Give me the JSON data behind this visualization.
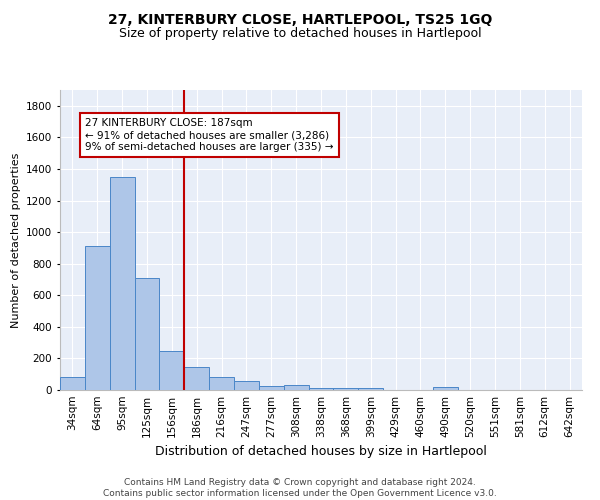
{
  "title": "27, KINTERBURY CLOSE, HARTLEPOOL, TS25 1GQ",
  "subtitle": "Size of property relative to detached houses in Hartlepool",
  "xlabel": "Distribution of detached houses by size in Hartlepool",
  "ylabel": "Number of detached properties",
  "footer_line1": "Contains HM Land Registry data © Crown copyright and database right 2024.",
  "footer_line2": "Contains public sector information licensed under the Open Government Licence v3.0.",
  "categories": [
    "34sqm",
    "64sqm",
    "95sqm",
    "125sqm",
    "156sqm",
    "186sqm",
    "216sqm",
    "247sqm",
    "277sqm",
    "308sqm",
    "338sqm",
    "368sqm",
    "399sqm",
    "429sqm",
    "460sqm",
    "490sqm",
    "520sqm",
    "551sqm",
    "581sqm",
    "612sqm",
    "642sqm"
  ],
  "values": [
    80,
    910,
    1350,
    710,
    250,
    145,
    85,
    55,
    25,
    30,
    10,
    10,
    10,
    0,
    0,
    20,
    0,
    0,
    0,
    0,
    0
  ],
  "bar_color": "#aec6e8",
  "bar_edge_color": "#4a86c8",
  "vline_x_index": 5,
  "vline_color": "#c00000",
  "annotation_text": "27 KINTERBURY CLOSE: 187sqm\n← 91% of detached houses are smaller (3,286)\n9% of semi-detached houses are larger (335) →",
  "annotation_box_color": "#ffffff",
  "annotation_box_edge": "#c00000",
  "ylim": [
    0,
    1900
  ],
  "yticks": [
    0,
    200,
    400,
    600,
    800,
    1000,
    1200,
    1400,
    1600,
    1800
  ],
  "title_fontsize": 10,
  "subtitle_fontsize": 9,
  "xlabel_fontsize": 9,
  "ylabel_fontsize": 8,
  "tick_fontsize": 7.5,
  "annotation_fontsize": 7.5,
  "footer_fontsize": 6.5,
  "background_color": "#e8eef8",
  "grid_color": "#ffffff",
  "fig_bg": "#ffffff"
}
